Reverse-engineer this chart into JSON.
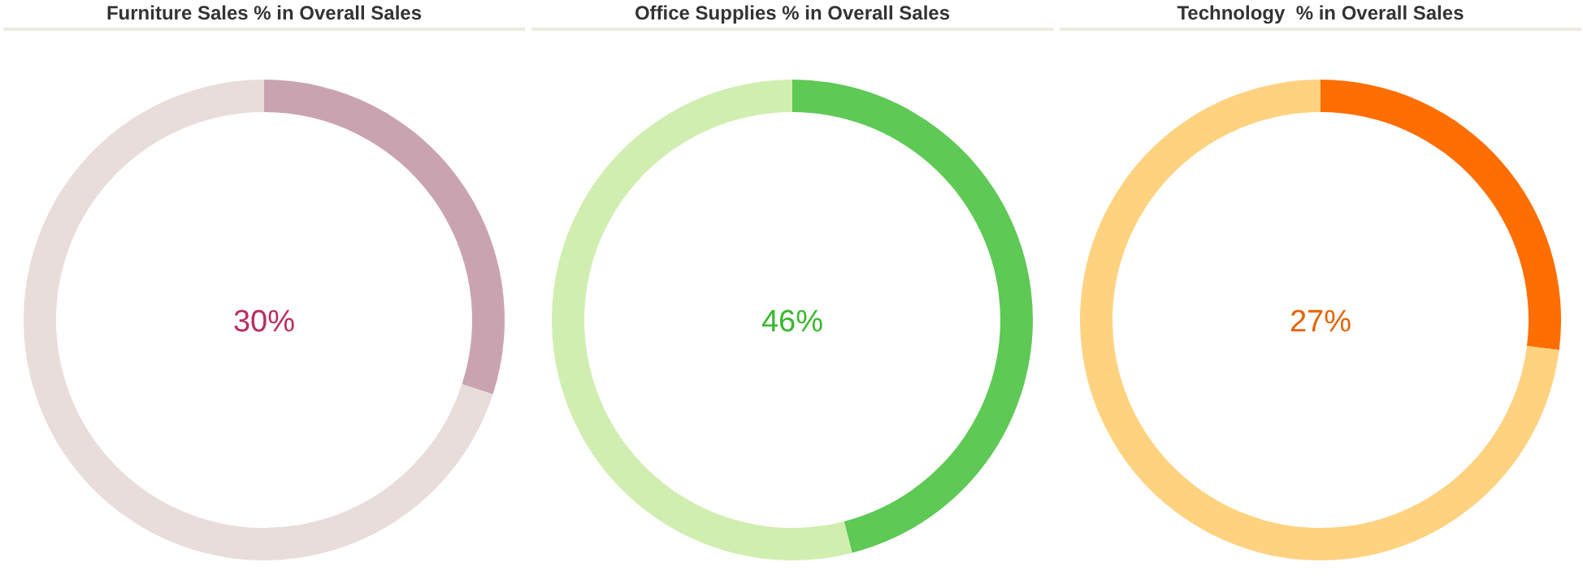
{
  "chart_data": [
    {
      "type": "donut",
      "title": "Furniture Sales % in Overall Sales",
      "categories": [
        null,
        null
      ],
      "values": [
        30,
        70
      ],
      "colors": [
        "#c9a4b0",
        "#e8dddb"
      ],
      "annotations": [
        "30%"
      ]
    },
    {
      "type": "donut",
      "title": "Office Supplies % in Overall Sales",
      "categories": [
        null,
        null
      ],
      "values": [
        46,
        54
      ],
      "colors": [
        "#5ec955",
        "#d0eeb0"
      ],
      "annotations": [
        "46%"
      ]
    },
    {
      "type": "donut",
      "title": "Technology  % in Overall Sales",
      "categories": [
        null,
        null
      ],
      "values": [
        27,
        73
      ],
      "colors": [
        "#ff6e00",
        "#ffd280"
      ],
      "annotations": [
        "27%"
      ]
    }
  ]
}
